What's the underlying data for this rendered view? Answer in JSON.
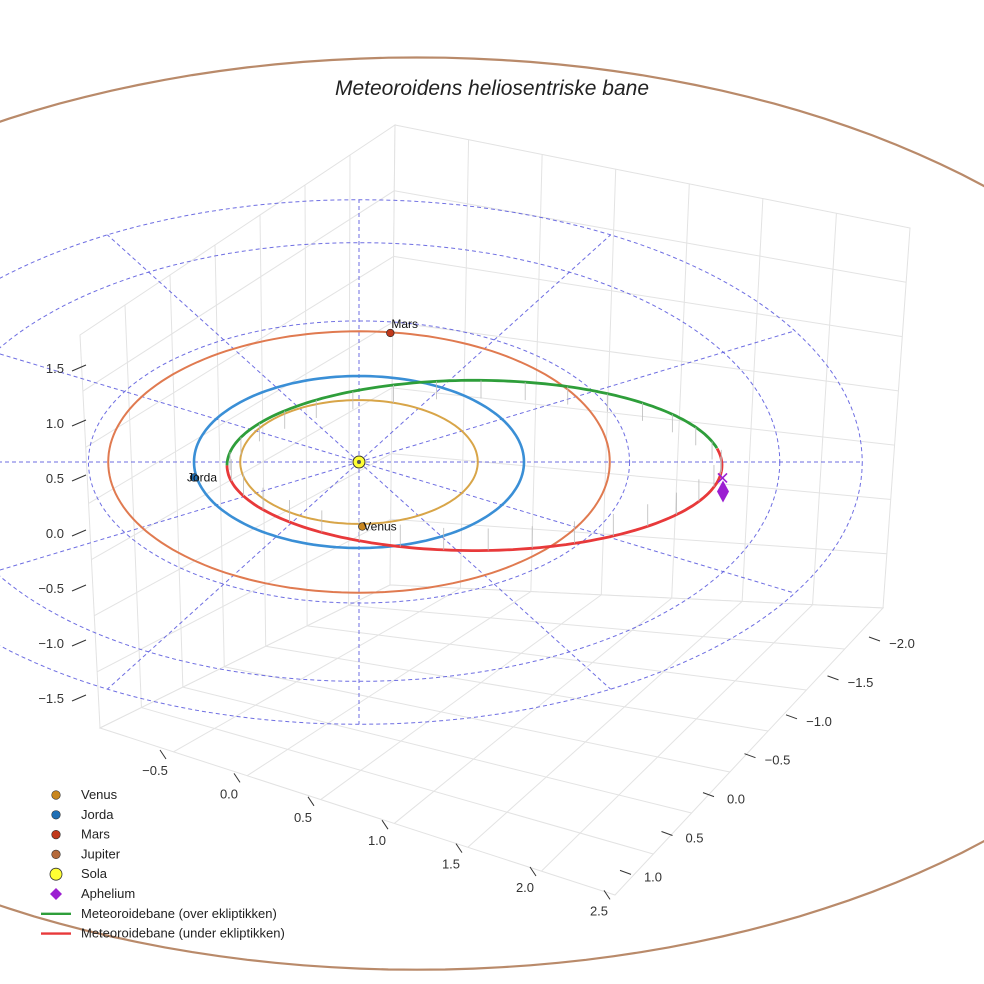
{
  "chart_data": {
    "type": "line",
    "title": "Meteoroidens heliosentriske bane",
    "axes": {
      "x_ticks": [
        "−0.5",
        "0.0",
        "0.5",
        "1.0",
        "1.5",
        "2.0",
        "2.5"
      ],
      "y_ticks": [
        "−2.0",
        "−1.5",
        "−1.0",
        "−0.5",
        "0.0",
        "0.5",
        "1.0"
      ],
      "z_ticks": [
        "−1.5",
        "−1.0",
        "−0.5",
        "0.0",
        "0.5",
        "1.0",
        "1.5"
      ],
      "grid": true
    },
    "bodies": [
      {
        "name": "Venus",
        "color": "#c8861f",
        "orbit_color": "#d8a548",
        "orbit_radius_au": 0.72
      },
      {
        "name": "Jorda",
        "color": "#1f6fb5",
        "orbit_color": "#3a8fd6",
        "orbit_radius_au": 1.0
      },
      {
        "name": "Mars",
        "color": "#c0391b",
        "orbit_color": "#e07a50",
        "orbit_radius_au": 1.52
      },
      {
        "name": "Jupiter",
        "color": "#b46a3c",
        "orbit_color": "#b98a6a",
        "orbit_radius_au": 5.2
      },
      {
        "name": "Sola",
        "color": "#ffff33"
      }
    ],
    "points_labels": {
      "venus": "Venus",
      "earth": "Jorda",
      "mars": "Mars"
    },
    "aphelium": {
      "name": "Aphelium",
      "color": "#9b1fd1"
    },
    "series": [
      {
        "name": "Meteoroidebane (over ekliptikken)",
        "color": "#2e9e3a"
      },
      {
        "name": "Meteoroidebane (under ekliptikken)",
        "color": "#e8393a"
      }
    ],
    "reference_grid_color": "#5555dd",
    "legend": {
      "position": "bottom-left",
      "items": [
        {
          "label": "Venus",
          "marker": "circle",
          "color": "#c8861f"
        },
        {
          "label": "Jorda",
          "marker": "circle",
          "color": "#1f6fb5"
        },
        {
          "label": "Mars",
          "marker": "circle",
          "color": "#c0391b"
        },
        {
          "label": "Jupiter",
          "marker": "circle",
          "color": "#b46a3c"
        },
        {
          "label": "Sola",
          "marker": "circle-large",
          "color": "#ffff33"
        },
        {
          "label": "Aphelium",
          "marker": "diamond",
          "color": "#9b1fd1"
        },
        {
          "label": "Meteoroidebane (over ekliptikken)",
          "marker": "line",
          "color": "#2e9e3a"
        },
        {
          "label": "Meteoroidebane (under ekliptikken)",
          "marker": "line",
          "color": "#e8393a"
        }
      ]
    }
  }
}
